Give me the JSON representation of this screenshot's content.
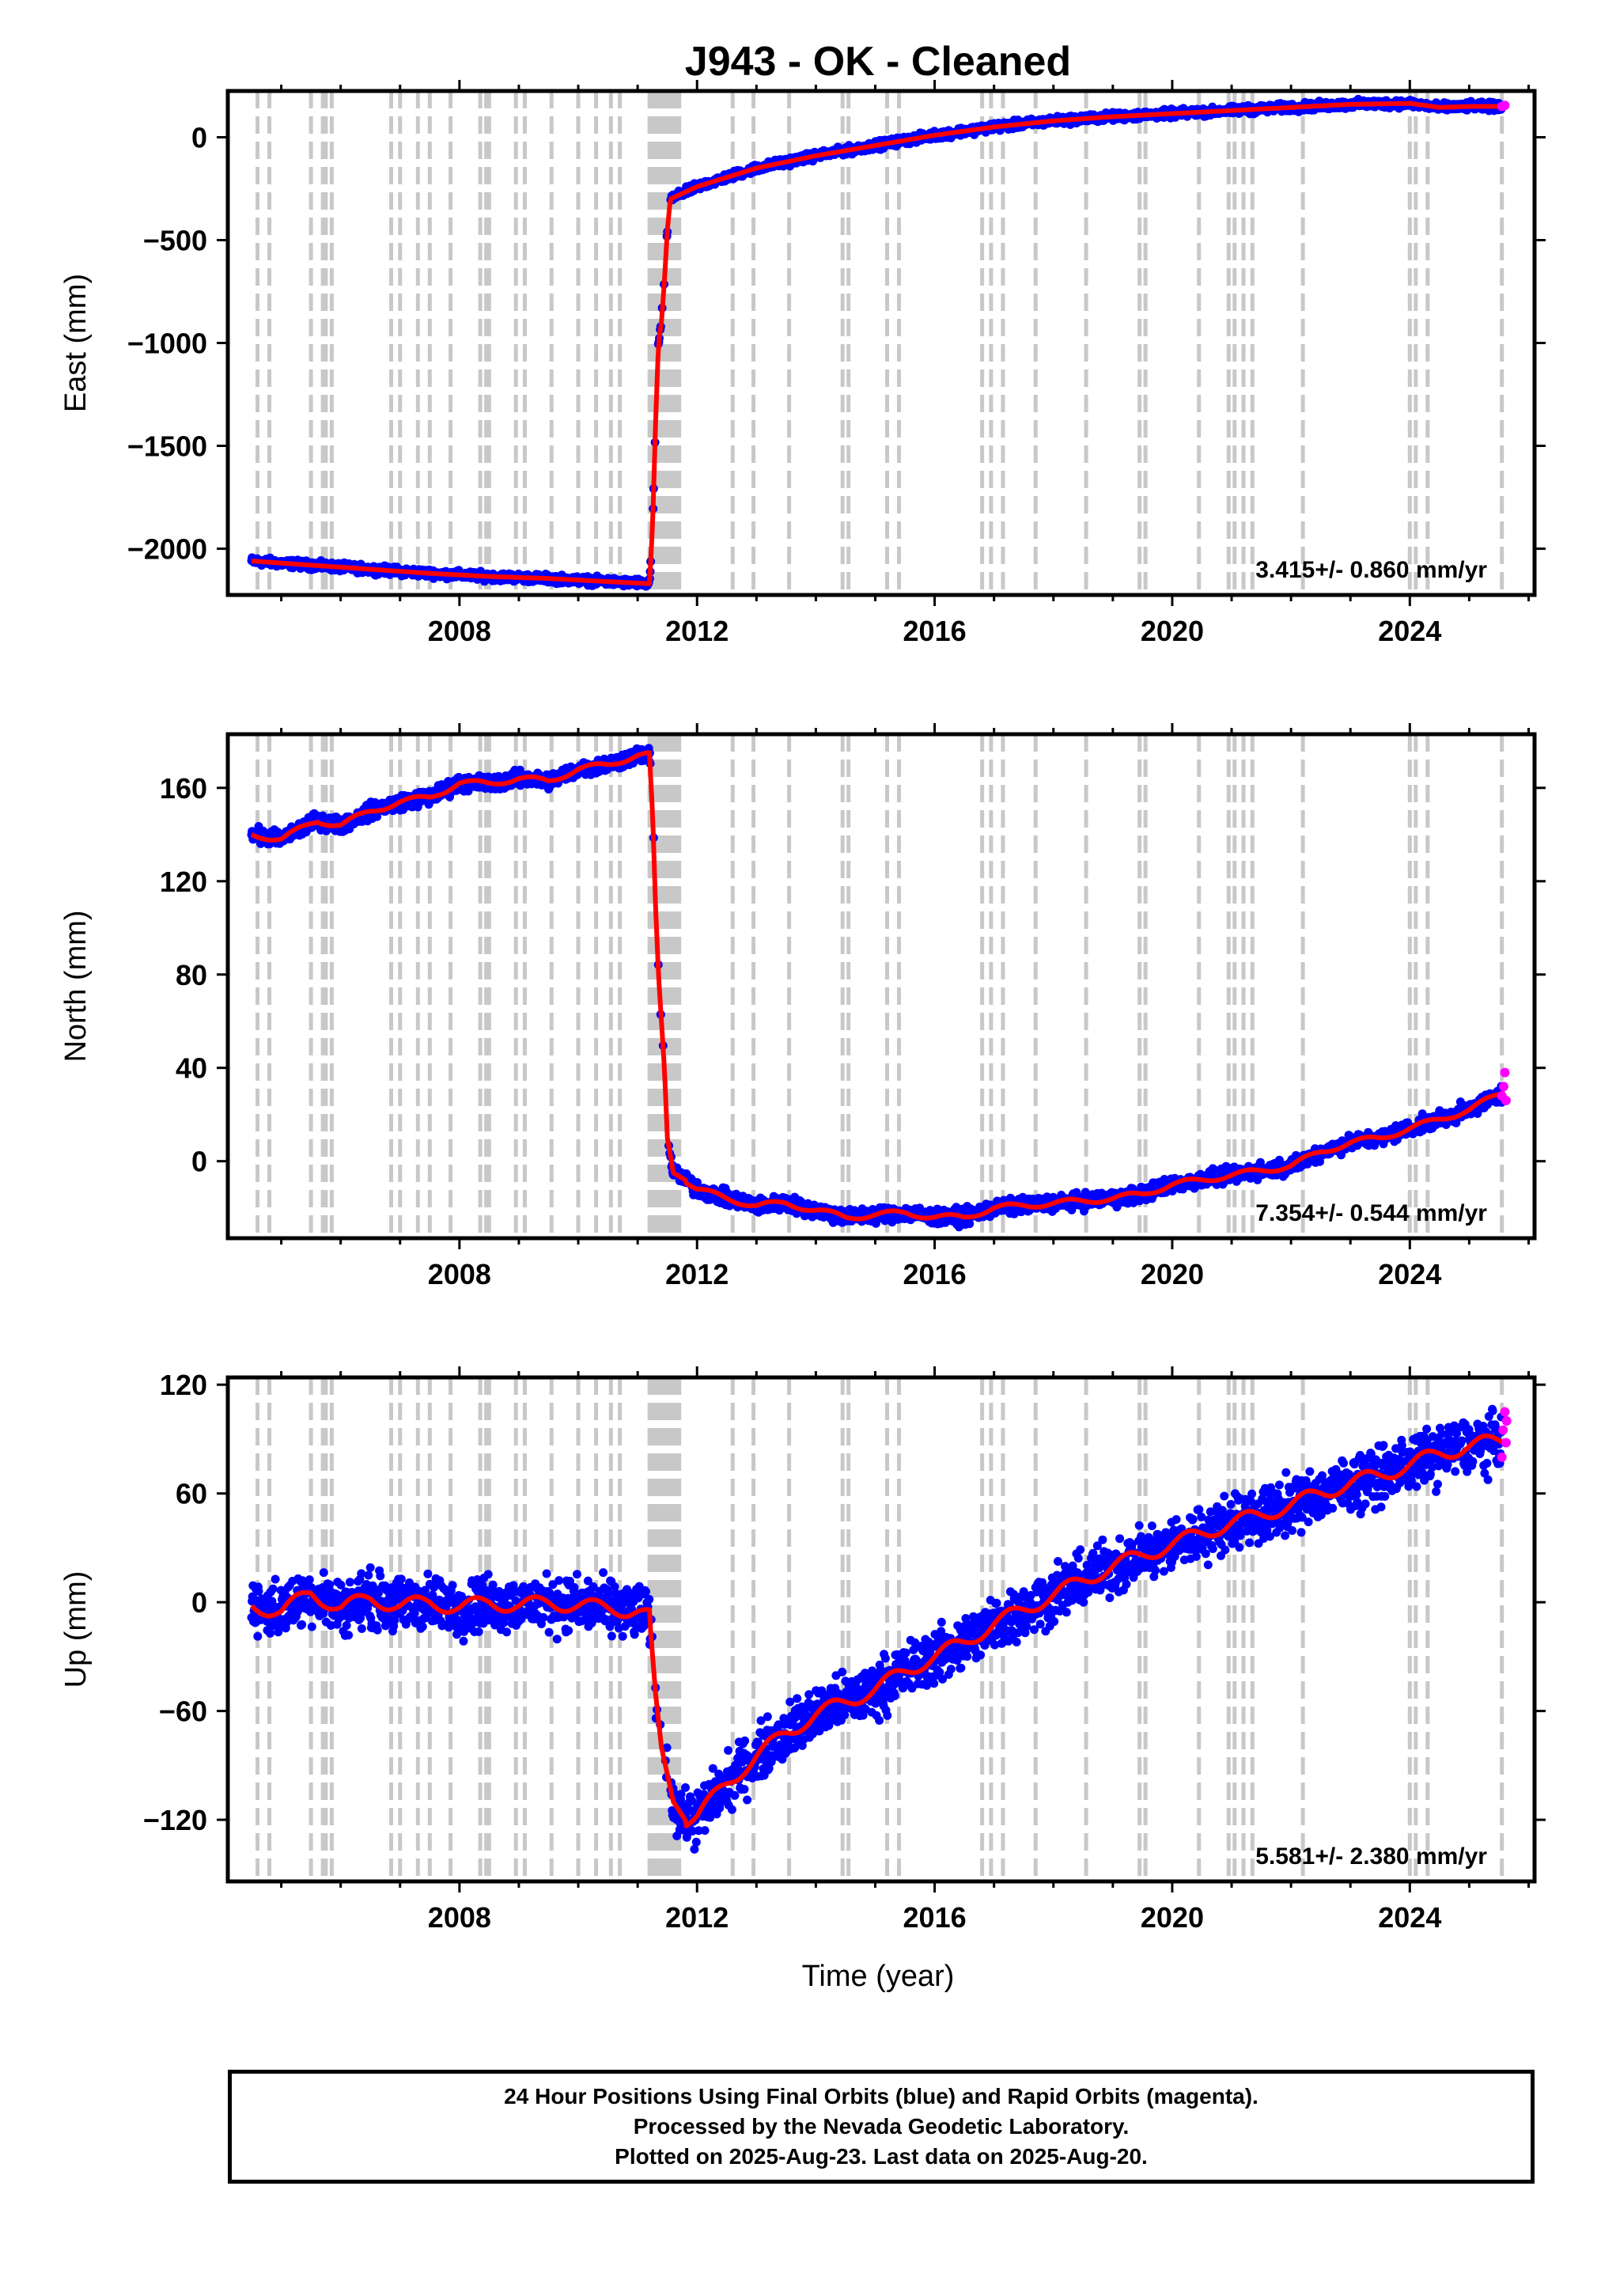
{
  "title": "J943  - OK - Cleaned",
  "x_axis_label": "Time (year)",
  "colors": {
    "final": "#0000ff",
    "rapid": "#ff00ff",
    "model": "#ff0000",
    "steps": "#c8c8c8"
  },
  "footer": {
    "line1": "24 Hour Positions Using Final Orbits (blue) and Rapid Orbits (magenta).",
    "line2": "Processed by the Nevada Geodetic Laboratory.",
    "line3": "Plotted on 2025-Aug-23. Last data on 2025-Aug-20."
  },
  "chart_data": [
    {
      "type": "scatter",
      "id": "east",
      "ylabel": "East (mm)",
      "annotation": "3.415+/- 0.860 mm/yr",
      "xlim": [
        2004.1,
        2026.1
      ],
      "ylim": [
        -2225,
        225
      ],
      "xticks": [
        2008,
        2012,
        2016,
        2020,
        2024
      ],
      "yticks": [
        0,
        -500,
        -1000,
        -1500,
        -2000
      ],
      "ytick_labels": [
        "0",
        "−500",
        "−1000",
        "−1500",
        "−2000"
      ],
      "trend": [
        [
          2004.5,
          -2060
        ],
        [
          2005.5,
          -2080
        ],
        [
          2006.5,
          -2100
        ],
        [
          2007.5,
          -2120
        ],
        [
          2008.5,
          -2135
        ],
        [
          2009.5,
          -2145
        ],
        [
          2010.5,
          -2160
        ],
        [
          2011.2,
          -2170
        ],
        [
          2011.25,
          -1900
        ],
        [
          2011.3,
          -1400
        ],
        [
          2011.35,
          -1000
        ],
        [
          2011.4,
          -900
        ],
        [
          2011.45,
          -700
        ],
        [
          2011.5,
          -450
        ],
        [
          2011.55,
          -300
        ],
        [
          2012.0,
          -240
        ],
        [
          2013.0,
          -150
        ],
        [
          2014.0,
          -90
        ],
        [
          2015.0,
          -40
        ],
        [
          2016.0,
          10
        ],
        [
          2017.0,
          50
        ],
        [
          2018.0,
          80
        ],
        [
          2019.0,
          100
        ],
        [
          2020.0,
          115
        ],
        [
          2021.0,
          130
        ],
        [
          2022.0,
          145
        ],
        [
          2023.0,
          160
        ],
        [
          2024.0,
          165
        ],
        [
          2024.5,
          145
        ],
        [
          2025.0,
          150
        ],
        [
          2025.6,
          150
        ]
      ],
      "scatter_spread": 12,
      "rapid_points": [
        [
          2025.55,
          150
        ],
        [
          2025.6,
          155
        ]
      ]
    },
    {
      "type": "scatter",
      "id": "north",
      "ylabel": "North (mm)",
      "annotation": "7.354+/- 0.544 mm/yr",
      "xlim": [
        2004.1,
        2026.1
      ],
      "ylim": [
        -33,
        183
      ],
      "xticks": [
        2008,
        2012,
        2016,
        2020,
        2024
      ],
      "yticks": [
        160,
        120,
        80,
        40,
        0
      ],
      "ytick_labels": [
        "160",
        "120",
        "80",
        "40",
        "0"
      ],
      "trend": [
        [
          2004.5,
          140
        ],
        [
          2005.0,
          138
        ],
        [
          2005.6,
          146
        ],
        [
          2006.0,
          144
        ],
        [
          2006.5,
          150
        ],
        [
          2007.0,
          154
        ],
        [
          2007.5,
          156
        ],
        [
          2008.0,
          162
        ],
        [
          2008.5,
          162
        ],
        [
          2009.0,
          164
        ],
        [
          2009.5,
          163
        ],
        [
          2010.0,
          168
        ],
        [
          2010.5,
          170
        ],
        [
          2011.0,
          174
        ],
        [
          2011.2,
          174
        ],
        [
          2011.25,
          150
        ],
        [
          2011.3,
          110
        ],
        [
          2011.35,
          80
        ],
        [
          2011.4,
          60
        ],
        [
          2011.45,
          40
        ],
        [
          2011.5,
          10
        ],
        [
          2011.6,
          -5
        ],
        [
          2011.8,
          -8
        ],
        [
          2012.0,
          -12
        ],
        [
          2012.5,
          -16
        ],
        [
          2013.0,
          -19
        ],
        [
          2013.5,
          -18
        ],
        [
          2014.0,
          -21
        ],
        [
          2014.5,
          -24
        ],
        [
          2015.0,
          -23
        ],
        [
          2015.5,
          -22
        ],
        [
          2016.0,
          -24
        ],
        [
          2016.5,
          -24
        ],
        [
          2017.0,
          -20
        ],
        [
          2017.5,
          -19
        ],
        [
          2018.0,
          -18
        ],
        [
          2018.5,
          -17
        ],
        [
          2019.0,
          -16
        ],
        [
          2019.5,
          -14
        ],
        [
          2020.0,
          -10
        ],
        [
          2020.5,
          -8
        ],
        [
          2021.0,
          -6
        ],
        [
          2021.5,
          -4
        ],
        [
          2022.0,
          -2
        ],
        [
          2022.5,
          4
        ],
        [
          2023.0,
          8
        ],
        [
          2023.5,
          10
        ],
        [
          2024.0,
          14
        ],
        [
          2024.5,
          18
        ],
        [
          2025.0,
          22
        ],
        [
          2025.6,
          30
        ]
      ],
      "scatter_spread": 2,
      "rapid_points": [
        [
          2025.55,
          28
        ],
        [
          2025.58,
          32
        ],
        [
          2025.6,
          38
        ],
        [
          2025.62,
          26
        ]
      ]
    },
    {
      "type": "scatter",
      "id": "up",
      "ylabel": "Up (mm)",
      "annotation": "5.581+/- 2.380 mm/yr",
      "xlim": [
        2004.1,
        2026.1
      ],
      "ylim": [
        -154,
        124
      ],
      "xticks": [
        2008,
        2012,
        2016,
        2020,
        2024
      ],
      "yticks": [
        120,
        60,
        0,
        -60,
        -120
      ],
      "ytick_labels": [
        "120",
        "60",
        "0",
        "−60",
        "−120"
      ],
      "trend": [
        [
          2004.5,
          -2
        ],
        [
          2005.0,
          -5
        ],
        [
          2005.5,
          5
        ],
        [
          2006.0,
          -3
        ],
        [
          2006.5,
          2
        ],
        [
          2007.0,
          -2
        ],
        [
          2007.5,
          0
        ],
        [
          2008.0,
          -3
        ],
        [
          2008.5,
          0
        ],
        [
          2009.0,
          -2
        ],
        [
          2009.5,
          0
        ],
        [
          2010.0,
          -2
        ],
        [
          2010.5,
          -3
        ],
        [
          2011.0,
          -5
        ],
        [
          2011.2,
          -8
        ],
        [
          2011.3,
          -50
        ],
        [
          2011.4,
          -80
        ],
        [
          2011.6,
          -110
        ],
        [
          2011.8,
          -120
        ],
        [
          2012.0,
          -118
        ],
        [
          2012.5,
          -100
        ],
        [
          2013.0,
          -85
        ],
        [
          2013.5,
          -72
        ],
        [
          2014.0,
          -62
        ],
        [
          2014.5,
          -55
        ],
        [
          2015.0,
          -48
        ],
        [
          2015.5,
          -38
        ],
        [
          2016.0,
          -30
        ],
        [
          2016.5,
          -22
        ],
        [
          2017.0,
          -12
        ],
        [
          2017.5,
          -4
        ],
        [
          2018.0,
          4
        ],
        [
          2018.5,
          12
        ],
        [
          2019.0,
          20
        ],
        [
          2019.5,
          26
        ],
        [
          2020.0,
          32
        ],
        [
          2020.5,
          38
        ],
        [
          2021.0,
          44
        ],
        [
          2021.5,
          48
        ],
        [
          2022.0,
          54
        ],
        [
          2022.5,
          60
        ],
        [
          2023.0,
          66
        ],
        [
          2023.5,
          70
        ],
        [
          2024.0,
          76
        ],
        [
          2024.5,
          82
        ],
        [
          2025.0,
          86
        ],
        [
          2025.6,
          90
        ]
      ],
      "scatter_spread": 9,
      "rapid_points": [
        [
          2025.55,
          80
        ],
        [
          2025.57,
          95
        ],
        [
          2025.6,
          105
        ],
        [
          2025.62,
          88
        ],
        [
          2025.63,
          100
        ]
      ]
    }
  ],
  "step_lines": [
    2004.6,
    2004.8,
    2005.5,
    2005.7,
    2005.75,
    2005.85,
    2006.85,
    2007.0,
    2007.3,
    2007.5,
    2007.85,
    2008.35,
    2008.45,
    2008.5,
    2008.95,
    2009.1,
    2009.55,
    2010.0,
    2010.3,
    2010.55,
    2010.7,
    2011.2,
    2011.25,
    2011.3,
    2011.35,
    2011.4,
    2011.45,
    2011.5,
    2011.55,
    2011.6,
    2011.65,
    2011.7,
    2012.6,
    2012.95,
    2013.55,
    2014.45,
    2014.55,
    2015.2,
    2015.4,
    2016.8,
    2016.95,
    2017.15,
    2017.7,
    2018.55,
    2019.45,
    2019.55,
    2020.45,
    2020.95,
    2021.05,
    2021.2,
    2021.35,
    2022.2,
    2024.0,
    2024.1,
    2024.3,
    2025.55
  ]
}
